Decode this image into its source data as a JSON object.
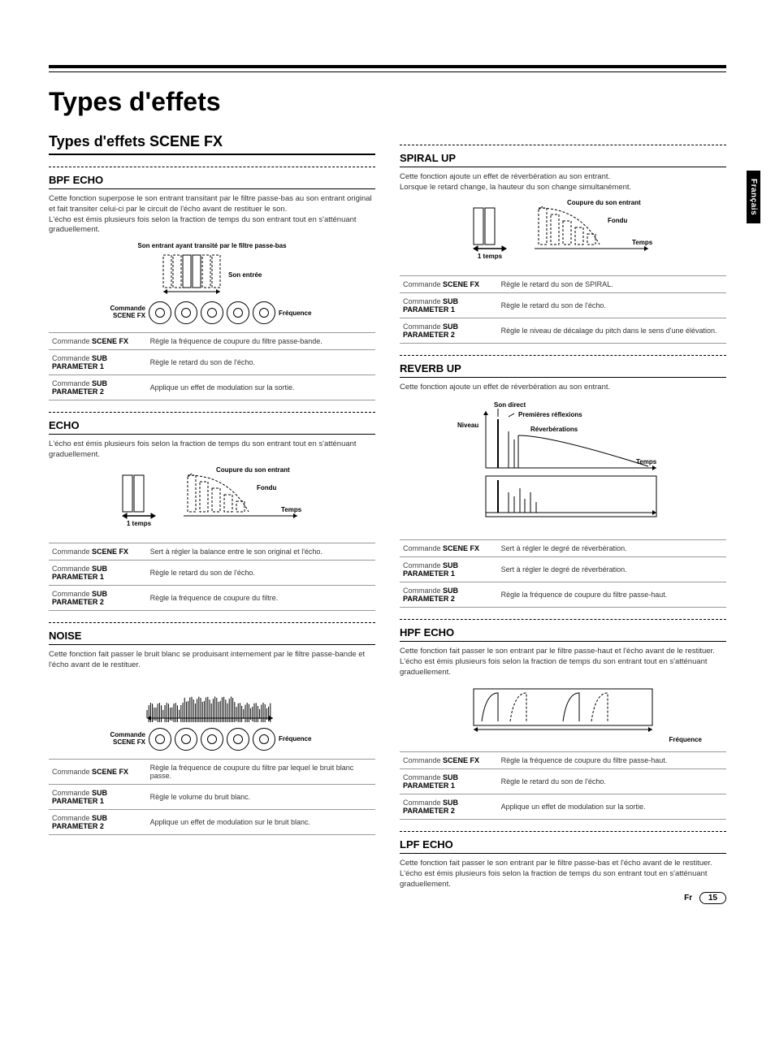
{
  "page": {
    "title": "Types d'effets",
    "language_tab": "Français",
    "footer_lang": "Fr",
    "footer_page": "15"
  },
  "left": {
    "heading": "Types d'effets SCENE FX",
    "sections": [
      {
        "title": "BPF ECHO",
        "desc": "Cette fonction superpose le son entrant transitant par le filtre passe-bas au son entrant original et fait transiter celui-ci par le circuit de l'écho avant de restituer le son.\nL'écho est émis plusieurs fois selon la fraction de temps du son entrant tout en s'atténuant graduellement.",
        "diagram": "bpf",
        "diagram_labels": {
          "top": "Son entrant ayant transité par le filtre passe-bas",
          "mid": "Son entrée",
          "left": "Commande SCENE FX",
          "right": "Fréquence"
        },
        "rows": [
          {
            "l": "Commande <b>SCENE FX</b>",
            "v": "Règle la fréquence de coupure du filtre passe-bande."
          },
          {
            "l": "Commande <b>SUB PARAMETER 1</b>",
            "v": "Règle le retard du son de l'écho."
          },
          {
            "l": "Commande <b>SUB PARAMETER 2</b>",
            "v": "Applique un effet de modulation sur la sortie."
          }
        ]
      },
      {
        "title": "ECHO",
        "desc": "L'écho est émis plusieurs fois selon la fraction de temps du son entrant tout en s'atténuant graduellement.",
        "diagram": "echo",
        "diagram_labels": {
          "top": "Coupure du son entrant",
          "fondu": "Fondu",
          "temps": "Temps",
          "onetemps": "1 temps"
        },
        "rows": [
          {
            "l": "Commande <b>SCENE FX</b>",
            "v": "Sert à régler la balance entre le son original et l'écho."
          },
          {
            "l": "Commande <b>SUB PARAMETER 1</b>",
            "v": "Règle le retard du son de l'écho."
          },
          {
            "l": "Commande <b>SUB PARAMETER 2</b>",
            "v": "Règle la fréquence de coupure du filtre."
          }
        ]
      },
      {
        "title": "NOISE",
        "desc": "Cette fonction fait passer le bruit blanc se produisant internement par le filtre passe-bande et l'écho avant de le restituer.",
        "diagram": "noise",
        "diagram_labels": {
          "left": "Commande SCENE FX",
          "right": "Fréquence"
        },
        "rows": [
          {
            "l": "Commande <b>SCENE FX</b>",
            "v": "Règle la fréquence de coupure du filtre par lequel le bruit blanc passe."
          },
          {
            "l": "Commande <b>SUB PARAMETER 1</b>",
            "v": "Règle le volume du bruit blanc."
          },
          {
            "l": "Commande <b>SUB PARAMETER 2</b>",
            "v": "Applique un effet de modulation sur le bruit blanc."
          }
        ]
      }
    ]
  },
  "right": {
    "sections": [
      {
        "title": "SPIRAL UP",
        "desc": "Cette fonction ajoute un effet de réverbération au son entrant.\nLorsque le retard change, la hauteur du son change simultanément.",
        "diagram": "echo",
        "diagram_labels": {
          "top": "Coupure du son entrant",
          "fondu": "Fondu",
          "temps": "Temps",
          "onetemps": "1 temps"
        },
        "rows": [
          {
            "l": "Commande <b>SCENE FX</b>",
            "v": "Règle le retard du son de SPIRAL."
          },
          {
            "l": "Commande <b>SUB PARAMETER 1</b>",
            "v": "Règle le retard du son de l'écho."
          },
          {
            "l": "Commande <b>SUB PARAMETER 2</b>",
            "v": "Règle le niveau de décalage du pitch dans le sens d'une élévation."
          }
        ]
      },
      {
        "title": "REVERB UP",
        "desc": "Cette fonction ajoute un effet de réverbération au son entrant.",
        "diagram": "reverb",
        "diagram_labels": {
          "direct": "Son direct",
          "prem": "Premières réflexions",
          "niveau": "Niveau",
          "reverb": "Réverbérations",
          "temps": "Temps"
        },
        "rows": [
          {
            "l": "Commande <b>SCENE FX</b>",
            "v": "Sert à régler le degré de réverbération."
          },
          {
            "l": "Commande <b>SUB PARAMETER 1</b>",
            "v": "Sert à régler le degré de réverbération."
          },
          {
            "l": "Commande <b>SUB PARAMETER 2</b>",
            "v": "Règle la fréquence de coupure du filtre passe-haut."
          }
        ]
      },
      {
        "title": "HPF ECHO",
        "desc": "Cette fonction fait passer le son entrant par le filtre passe-haut et l'écho avant de le restituer.\nL'écho est émis plusieurs fois selon la fraction de temps du son entrant tout en s'atténuant graduellement.",
        "diagram": "hpf",
        "diagram_labels": {
          "right": "Fréquence"
        },
        "rows": [
          {
            "l": "Commande <b>SCENE FX</b>",
            "v": "Règle la fréquence de coupure du filtre passe-haut."
          },
          {
            "l": "Commande <b>SUB PARAMETER 1</b>",
            "v": "Règle le retard du son de l'écho."
          },
          {
            "l": "Commande <b>SUB PARAMETER 2</b>",
            "v": "Applique un effet de modulation sur la sortie."
          }
        ]
      },
      {
        "title": "LPF ECHO",
        "desc": "Cette fonction fait passer le son entrant par le filtre passe-bas et l'écho avant de le restituer.\nL'écho est émis plusieurs fois selon la fraction de temps du son entrant tout en s'atténuant graduellement.",
        "diagram": null,
        "rows": []
      }
    ]
  },
  "colors": {
    "text": "#000000",
    "muted": "#333333",
    "rule": "#999999",
    "bg": "#ffffff"
  }
}
